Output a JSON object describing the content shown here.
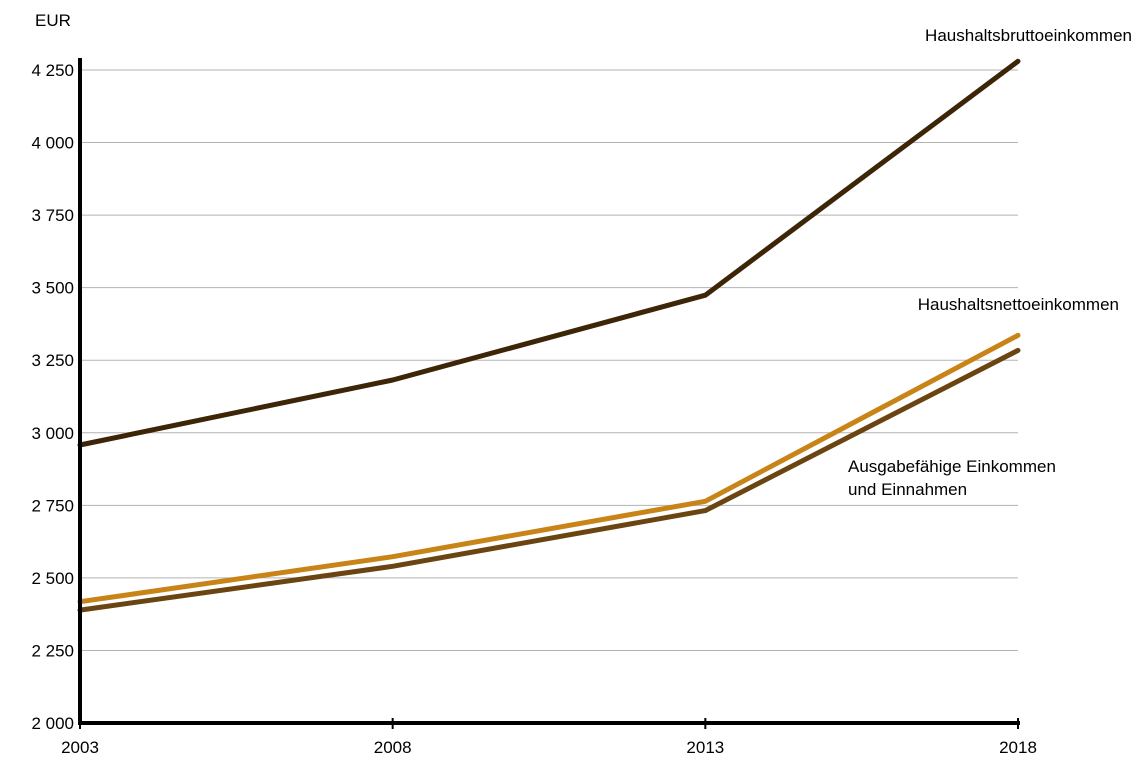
{
  "chart_data": {
    "type": "line",
    "unit_label": "EUR",
    "x": [
      "2003",
      "2008",
      "2013",
      "2018"
    ],
    "ylim": [
      2000,
      4250
    ],
    "yticks": [
      2000,
      2250,
      2500,
      2750,
      3000,
      3250,
      3500,
      3750,
      4000,
      4250
    ],
    "ytick_labels": [
      "2 000",
      "2 250",
      "2 500",
      "2 750",
      "3 000",
      "3 250",
      "3 500",
      "3 750",
      "4 000",
      "4 250"
    ],
    "grid": true,
    "series": [
      {
        "name": "Haushaltsbruttoeinkommen",
        "label_lines": [
          "Haushaltsbruttoeinkommen"
        ],
        "values": [
          2958,
          3182,
          3474,
          4280
        ],
        "color": "#3d2508"
      },
      {
        "name": "Haushaltsnettoeinkommen",
        "label_lines": [
          "Haushaltsnettoeinkommen"
        ],
        "values": [
          2418,
          2573,
          2764,
          3336
        ],
        "color": "#c98418"
      },
      {
        "name": "Ausgabefähige Einkommen und Einnahmen",
        "label_lines": [
          "Ausgabefähige Einkommen",
          "und Einnahmen"
        ],
        "values": [
          2389,
          2540,
          2732,
          3284
        ],
        "color": "#6b4511"
      }
    ]
  }
}
